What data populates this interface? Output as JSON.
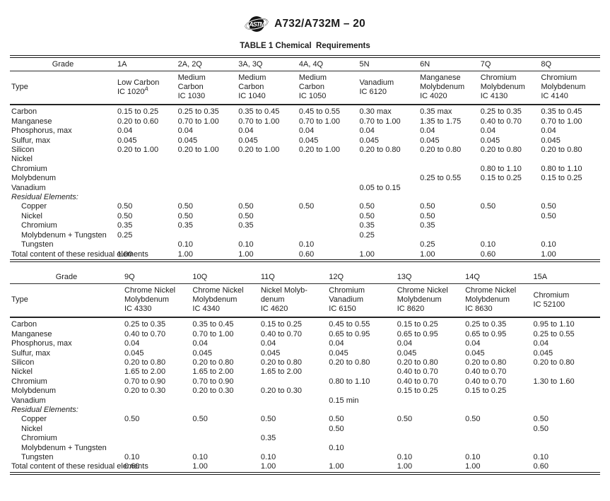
{
  "header": {
    "doc_code": "A732/A732M – 20"
  },
  "logo_text": "ASTM",
  "title": "TABLE 1 Chemical  Requirements",
  "table1": {
    "grade_label": "Grade",
    "type_label": "Type",
    "columns": [
      "1A",
      "2A, 2Q",
      "3A, 3Q",
      "4A, 4Q",
      "5N",
      "6N",
      "7Q",
      "8Q"
    ],
    "types": [
      {
        "lines": [
          "Low Carbon",
          "IC 1020"
        ],
        "sup": "A"
      },
      {
        "lines": [
          "Medium",
          "Carbon",
          "IC 1030"
        ]
      },
      {
        "lines": [
          "Medium",
          "Carbon",
          "IC 1040"
        ]
      },
      {
        "lines": [
          "Medium",
          "Carbon",
          "IC 1050"
        ]
      },
      {
        "lines": [
          "Vanadium",
          "IC 6120"
        ]
      },
      {
        "lines": [
          "Manganese",
          "Molybdenum",
          "IC 4020"
        ]
      },
      {
        "lines": [
          "Chromium",
          "Molybdenum",
          "IC 4130"
        ]
      },
      {
        "lines": [
          "Chromium",
          "Molybdenum",
          "IC 4140"
        ]
      }
    ],
    "rows": [
      {
        "label": "Carbon",
        "values": [
          "0.15 to 0.25",
          "0.25 to 0.35",
          "0.35 to 0.45",
          "0.45 to 0.55",
          "0.30 max",
          "0.35 max",
          "0.25 to 0.35",
          "0.35 to 0.45"
        ]
      },
      {
        "label": "Manganese",
        "values": [
          "0.20 to 0.60",
          "0.70 to 1.00",
          "0.70 to 1.00",
          "0.70 to 1.00",
          "0.70 to 1.00",
          "1.35 to 1.75",
          "0.40 to 0.70",
          "0.70 to 1.00"
        ]
      },
      {
        "label": "Phosphorus, max",
        "values": [
          "0.04",
          "0.04",
          "0.04",
          "0.04",
          "0.04",
          "0.04",
          "0.04",
          "0.04"
        ]
      },
      {
        "label": "Sulfur, max",
        "values": [
          "0.045",
          "0.045",
          "0.045",
          "0.045",
          "0.045",
          "0.045",
          "0.045",
          "0.045"
        ]
      },
      {
        "label": "Silicon",
        "values": [
          "0.20 to 1.00",
          "0.20 to 1.00",
          "0.20 to 1.00",
          "0.20 to 1.00",
          "0.20 to 0.80",
          "0.20 to 0.80",
          "0.20 to 0.80",
          "0.20 to 0.80"
        ]
      },
      {
        "label": "Nickel",
        "values": []
      },
      {
        "label": "Chromium",
        "values": [
          "",
          "",
          "",
          "",
          "",
          "",
          "0.80 to 1.10",
          "0.80 to 1.10"
        ]
      },
      {
        "label": "Molybdenum",
        "values": [
          "",
          "",
          "",
          "",
          "",
          "0.25 to 0.55",
          "0.15 to 0.25",
          "0.15 to 0.25"
        ]
      },
      {
        "label": "Vanadium",
        "values": [
          "",
          "",
          "",
          "",
          "0.05 to 0.15",
          "",
          "",
          ""
        ]
      },
      {
        "label": "Residual Elements:",
        "italic": true,
        "values": []
      },
      {
        "label": "Copper",
        "indent": true,
        "values": [
          "0.50",
          "0.50",
          "0.50",
          "0.50",
          "0.50",
          "0.50",
          "0.50",
          "0.50"
        ]
      },
      {
        "label": "Nickel",
        "indent": true,
        "values": [
          "0.50",
          "0.50",
          "0.50",
          "",
          "0.50",
          "0.50",
          "",
          "0.50"
        ]
      },
      {
        "label": "Chromium",
        "indent": true,
        "values": [
          "0.35",
          "0.35",
          "0.35",
          "",
          "0.35",
          "0.35",
          "",
          ""
        ]
      },
      {
        "label": "Molybdenum + Tungsten",
        "indent": true,
        "values": [
          "0.25",
          "",
          "",
          "",
          "0.25",
          "",
          "",
          ""
        ]
      },
      {
        "label": "Tungsten",
        "indent": true,
        "values": [
          "",
          "0.10",
          "0.10",
          "0.10",
          "",
          "0.25",
          "0.10",
          "0.10"
        ]
      },
      {
        "label": "Total content of these residual elements",
        "values": [
          "1.00",
          "1.00",
          "1.00",
          "0.60",
          "1.00",
          "1.00",
          "0.60",
          "1.00"
        ]
      }
    ]
  },
  "table2": {
    "grade_label": "Grade",
    "type_label": "Type",
    "columns": [
      "9Q",
      "10Q",
      "11Q",
      "12Q",
      "13Q",
      "14Q",
      "15A"
    ],
    "types": [
      {
        "lines": [
          "Chrome Nickel",
          "Molybdenum",
          "IC 4330"
        ]
      },
      {
        "lines": [
          "Chrome Nickel",
          "Molybdenum",
          "IC 4340"
        ]
      },
      {
        "lines": [
          "Nickel Molyb-",
          "denum",
          "IC 4620"
        ]
      },
      {
        "lines": [
          "Chromium",
          "Vanadium",
          "IC 6150"
        ]
      },
      {
        "lines": [
          "Chrome Nickel",
          "Molybdenum",
          "IC 8620"
        ]
      },
      {
        "lines": [
          "Chrome Nickel",
          "Molybdenum",
          "IC 8630"
        ]
      },
      {
        "lines": [
          "Chromium",
          "IC 52100"
        ]
      }
    ],
    "rows": [
      {
        "label": "Carbon",
        "values": [
          "0.25 to 0.35",
          "0.35 to 0.45",
          "0.15 to 0.25",
          "0.45 to 0.55",
          "0.15 to 0.25",
          "0.25 to 0.35",
          "0.95 to 1.10"
        ]
      },
      {
        "label": "Manganese",
        "values": [
          "0.40 to 0.70",
          "0.70 to 1.00",
          "0.40 to 0.70",
          "0.65 to 0.95",
          "0.65 to 0.95",
          "0.65 to 0.95",
          "0.25 to 0.55"
        ]
      },
      {
        "label": "Phosphorus, max",
        "values": [
          "0.04",
          "0.04",
          "0.04",
          "0.04",
          "0.04",
          "0.04",
          "0.04"
        ]
      },
      {
        "label": "Sulfur, max",
        "values": [
          "0.045",
          "0.045",
          "0.045",
          "0.045",
          "0.045",
          "0.045",
          "0.045"
        ]
      },
      {
        "label": "Silicon",
        "values": [
          "0.20 to 0.80",
          "0.20 to 0.80",
          "0.20 to 0.80",
          "0.20 to 0.80",
          "0.20 to 0.80",
          "0.20 to 0.80",
          "0.20 to 0.80"
        ]
      },
      {
        "label": "Nickel",
        "values": [
          "1.65 to 2.00",
          "1.65 to 2.00",
          "1.65 to 2.00",
          "",
          "0.40 to 0.70",
          "0.40 to 0.70",
          ""
        ]
      },
      {
        "label": "Chromium",
        "values": [
          "0.70 to 0.90",
          "0.70 to 0.90",
          "",
          "0.80 to 1.10",
          "0.40 to 0.70",
          "0.40 to 0.70",
          "1.30 to 1.60"
        ]
      },
      {
        "label": "Molybdenum",
        "values": [
          "0.20 to 0.30",
          "0.20 to 0.30",
          "0.20 to 0.30",
          "",
          "0.15 to 0.25",
          "0.15 to 0.25",
          ""
        ]
      },
      {
        "label": "Vanadium",
        "values": [
          "",
          "",
          "",
          "0.15 min",
          "",
          "",
          ""
        ]
      },
      {
        "label": "Residual Elements:",
        "italic": true,
        "values": []
      },
      {
        "label": "Copper",
        "indent": true,
        "values": [
          "0.50",
          "0.50",
          "0.50",
          "0.50",
          "0.50",
          "0.50",
          "0.50"
        ]
      },
      {
        "label": "Nickel",
        "indent": true,
        "values": [
          "",
          "",
          "",
          "0.50",
          "",
          "",
          "0.50"
        ]
      },
      {
        "label": "Chromium",
        "indent": true,
        "values": [
          "",
          "",
          "0.35",
          "",
          "",
          "",
          ""
        ]
      },
      {
        "label": "Molybdenum + Tungsten",
        "indent": true,
        "values": [
          "",
          "",
          "",
          "0.10",
          "",
          "",
          ""
        ]
      },
      {
        "label": "Tungsten",
        "indent": true,
        "values": [
          "0.10",
          "0.10",
          "0.10",
          "",
          "0.10",
          "0.10",
          "0.10"
        ]
      },
      {
        "label": "Total content of these residual elements",
        "values": [
          "0.60",
          "1.00",
          "1.00",
          "1.00",
          "1.00",
          "1.00",
          "0.60"
        ]
      }
    ]
  }
}
